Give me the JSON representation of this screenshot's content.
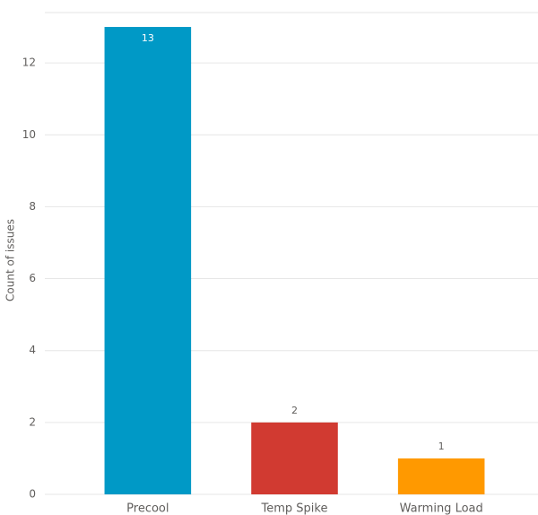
{
  "chart_data": {
    "type": "bar",
    "y_label": "Count of issues",
    "categories": [
      "Precool",
      "Temp Spike",
      "Warming Load"
    ],
    "values": [
      13,
      2,
      1
    ],
    "colors": [
      "#0099c6",
      "#d13a31",
      "#ff9900"
    ],
    "ylim": [
      0,
      13.4
    ],
    "yticks": [
      0,
      2,
      4,
      6,
      8,
      10,
      12
    ],
    "grid": true
  }
}
